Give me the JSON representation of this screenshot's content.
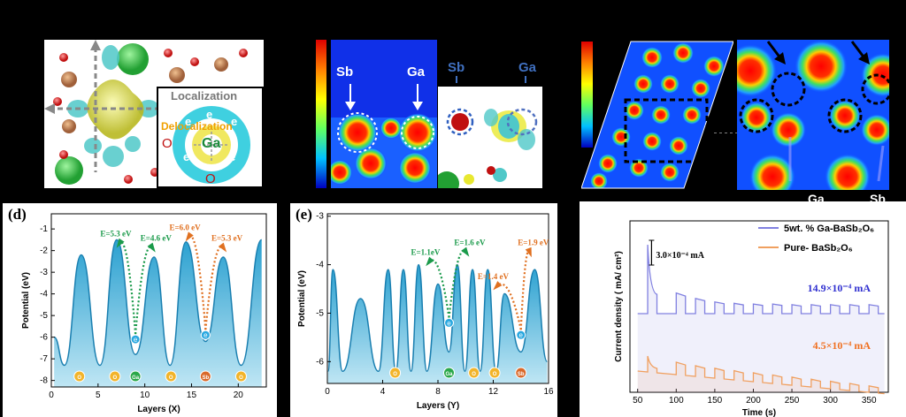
{
  "panel_a": {
    "localization": "Localization",
    "delocalization": "Delocalization",
    "ga": "Ga",
    "o": "O",
    "e": "e"
  },
  "panel_b": {
    "sb": "Sb",
    "ga": "Ga"
  },
  "panel_c": {
    "ga": "Ga",
    "sb": "Sb"
  },
  "chart_data": [
    {
      "type": "line",
      "panel_label": "(d)",
      "xlabel": "Layers (X)",
      "ylabel": "Potential (eV)",
      "xlim": [
        0,
        23
      ],
      "ylim": [
        -8.3,
        -0.3
      ],
      "xticks": [
        0,
        5,
        10,
        15,
        20
      ],
      "yticks": [
        -8,
        -7,
        -6,
        -5,
        -4,
        -3,
        -2,
        -1
      ],
      "peaks": [
        {
          "x": 3.2,
          "y": -2.2
        },
        {
          "x": 7.0,
          "y": -1.5
        },
        {
          "x": 11.0,
          "y": -2.3
        },
        {
          "x": 14.4,
          "y": -1.6
        },
        {
          "x": 18.4,
          "y": -2.3
        },
        {
          "x": 22.5,
          "y": -1.5
        }
      ],
      "minima": [
        {
          "x": 0.3,
          "y": -6.0
        },
        {
          "x": 1.4,
          "y": -7.3
        },
        {
          "x": 5.2,
          "y": -7.3
        },
        {
          "x": 9.0,
          "y": -6.8
        },
        {
          "x": 12.7,
          "y": -7.3
        },
        {
          "x": 16.5,
          "y": -6.2
        },
        {
          "x": 20.3,
          "y": -7.3
        }
      ],
      "atoms": [
        {
          "label": "O",
          "x": 3.0,
          "color": "#f2b42a"
        },
        {
          "label": "O",
          "x": 6.8,
          "color": "#f2b42a"
        },
        {
          "label": "Ga",
          "x": 9.0,
          "color": "#2aa84a"
        },
        {
          "label": "O",
          "x": 12.8,
          "color": "#f2b42a"
        },
        {
          "label": "Sb",
          "x": 16.5,
          "color": "#d9692a"
        },
        {
          "label": "O",
          "x": 20.3,
          "color": "#f2b42a"
        }
      ],
      "electrons": [
        {
          "label": "e",
          "x": 9.0,
          "y": -6.1
        },
        {
          "label": "e",
          "x": 16.5,
          "y": -5.9
        }
      ],
      "annotations": [
        {
          "text": "E=5.3 eV",
          "x": 6.9,
          "y": -1.35,
          "color": "#1a9a4a"
        },
        {
          "text": "E=4.6 eV",
          "x": 11.2,
          "y": -1.55,
          "color": "#1a9a4a"
        },
        {
          "text": "E=6.0 eV",
          "x": 14.3,
          "y": -1.05,
          "color": "#e07020"
        },
        {
          "text": "E=5.3 eV",
          "x": 18.8,
          "y": -1.55,
          "color": "#e07020"
        }
      ]
    },
    {
      "type": "line",
      "panel_label": "(e)",
      "xlabel": "Layers (Y)",
      "ylabel": "Potential (eV)",
      "xlim": [
        0,
        16
      ],
      "ylim": [
        -6.45,
        -2.95
      ],
      "xticks": [
        0,
        4,
        8,
        12,
        16
      ],
      "yticks": [
        -6,
        -5,
        -4,
        -3
      ],
      "peaks": [
        {
          "x": 0.4,
          "y": -4.1
        },
        {
          "x": 2.4,
          "y": -4.7
        },
        {
          "x": 4.4,
          "y": -4.1
        },
        {
          "x": 5.5,
          "y": -4.1
        },
        {
          "x": 6.6,
          "y": -4.0
        },
        {
          "x": 8.0,
          "y": -4.4
        },
        {
          "x": 9.4,
          "y": -4.0
        },
        {
          "x": 10.5,
          "y": -4.1
        },
        {
          "x": 11.6,
          "y": -4.1
        },
        {
          "x": 12.8,
          "y": -4.6
        },
        {
          "x": 15.0,
          "y": -4.1
        }
      ],
      "minima": [
        {
          "x": 0.05,
          "y": -6.2
        },
        {
          "x": 1.1,
          "y": -6.2
        },
        {
          "x": 3.7,
          "y": -6.2
        },
        {
          "x": 4.95,
          "y": -6.2
        },
        {
          "x": 6.05,
          "y": -6.2
        },
        {
          "x": 7.2,
          "y": -6.2
        },
        {
          "x": 8.8,
          "y": -5.8
        },
        {
          "x": 9.95,
          "y": -6.2
        },
        {
          "x": 11.05,
          "y": -6.2
        },
        {
          "x": 12.2,
          "y": -6.2
        },
        {
          "x": 14.0,
          "y": -5.8
        },
        {
          "x": 15.9,
          "y": -6.0
        }
      ],
      "atoms": [
        {
          "label": "O",
          "x": 4.9,
          "color": "#f2b42a"
        },
        {
          "label": "Ga",
          "x": 8.8,
          "color": "#2aa84a"
        },
        {
          "label": "O",
          "x": 10.6,
          "color": "#f2b42a"
        },
        {
          "label": "O",
          "x": 12.1,
          "color": "#f2b42a"
        },
        {
          "label": "Sb",
          "x": 14.0,
          "color": "#d9692a"
        }
      ],
      "electrons": [
        {
          "label": "e",
          "x": 8.8,
          "y": -5.2
        },
        {
          "label": "e",
          "x": 14.0,
          "y": -5.45
        }
      ],
      "annotations": [
        {
          "text": "E=1.1eV",
          "x": 7.1,
          "y": -3.8,
          "color": "#1a9a4a"
        },
        {
          "text": "E=1.6 eV",
          "x": 10.3,
          "y": -3.6,
          "color": "#1a9a4a"
        },
        {
          "text": "E=1.9 eV",
          "x": 14.9,
          "y": -3.6,
          "color": "#e07020"
        },
        {
          "text": "E=1.4 eV",
          "x": 12.0,
          "y": -4.3,
          "color": "#e07020"
        }
      ]
    },
    {
      "type": "line",
      "panel_label": "",
      "xlabel": "Time (s)",
      "ylabel": "Current density ( mA/ cm²)",
      "xlim": [
        40,
        375
      ],
      "xticks": [
        50,
        100,
        150,
        200,
        250,
        300,
        350
      ],
      "legend": [
        "5wt. % Ga-BaSb₂O₆",
        "Pure- BaSb₂O₆"
      ],
      "scale_annotation": "3.0×10⁻⁴ mA",
      "series": [
        {
          "name": "5wt. % Ga-BaSb₂O₆",
          "color": "#8080e0",
          "value_label": "14.9×10⁻⁴ mA",
          "pulses_on": [
            63,
            100,
            125,
            150,
            175,
            200,
            225,
            250,
            275,
            300,
            325,
            350
          ],
          "pulse_heights": [
            1.0,
            0.3,
            0.22,
            0.17,
            0.15,
            0.14,
            0.14,
            0.13,
            0.13,
            0.13,
            0.13,
            0.13
          ]
        },
        {
          "name": "Pure- BaSb₂O₆",
          "color": "#f0a060",
          "value_label": "4.5×10⁻⁴ mA",
          "pulses_on": [
            63,
            100,
            125,
            150,
            175,
            200,
            225,
            250,
            275,
            300,
            325,
            350
          ],
          "pulse_heights": [
            0.45,
            0.35,
            0.3,
            0.28,
            0.26,
            0.25,
            0.24,
            0.23,
            0.22,
            0.21,
            0.2,
            0.18
          ]
        }
      ]
    }
  ]
}
